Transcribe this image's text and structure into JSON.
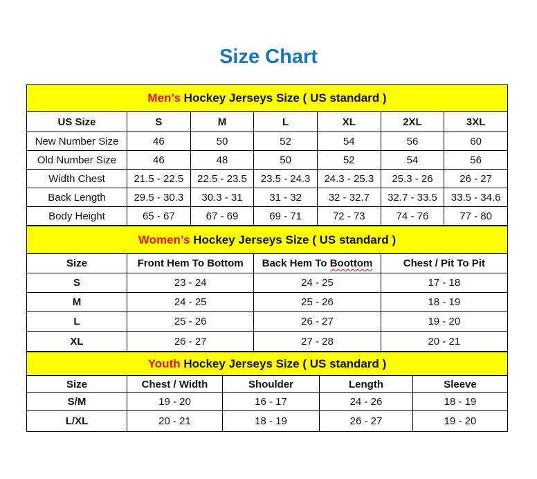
{
  "title": "Size Chart",
  "mens": {
    "heading_prefix": "Men’s",
    "heading_rest": " Hockey Jerseys Size ( US standard )",
    "columns": [
      "US Size",
      "S",
      "M",
      "L",
      "XL",
      "2XL",
      "3XL"
    ],
    "rows": [
      [
        "New Number Size",
        "46",
        "50",
        "52",
        "54",
        "56",
        "60"
      ],
      [
        "Old Number Size",
        "46",
        "48",
        "50",
        "52",
        "54",
        "56"
      ],
      [
        "Width Chest",
        "21.5 - 22.5",
        "22.5 - 23.5",
        "23.5 - 24.3",
        "24.3 - 25.3",
        "25.3 - 26",
        "26 - 27"
      ],
      [
        "Back Length",
        "29.5 - 30.3",
        "30.3 - 31",
        "31 - 32",
        "32 - 32.7",
        "32.7 - 33.5",
        "33.5 - 34.6"
      ],
      [
        "Body Height",
        "65 - 67",
        "67 - 69",
        "69 - 71",
        "72 - 73",
        "74 - 76",
        "77 - 80"
      ]
    ]
  },
  "womens": {
    "heading_prefix": "Women’s",
    "heading_rest": " Hockey Jerseys Size ( US standard )",
    "columns": [
      "Size",
      "Front Hem To Bottom",
      "Back Hem To ",
      "Chest / Pit To Pit"
    ],
    "misspelled_word": "Boottom",
    "rows": [
      [
        "S",
        "23 - 24",
        "24 - 25",
        "17 - 18"
      ],
      [
        "M",
        "24 - 25",
        "25 - 26",
        "18 - 19"
      ],
      [
        "L",
        "25 - 26",
        "26 - 27",
        "19 - 20"
      ],
      [
        "XL",
        "26 - 27",
        "27 - 28",
        "20 - 21"
      ]
    ]
  },
  "youth": {
    "heading_prefix": "Youth",
    "heading_rest": " Hockey Jerseys Size ( US standard )",
    "columns": [
      "Size",
      "Chest / Width",
      "Shoulder",
      "Length",
      "Sleeve"
    ],
    "rows": [
      [
        "S/M",
        "19 - 20",
        "16 - 17",
        "24 - 26",
        "18 - 19"
      ],
      [
        "L/XL",
        "20 - 21",
        "18 - 19",
        "26 - 27",
        "19 - 20"
      ]
    ]
  },
  "colors": {
    "title": "#1b75bc",
    "section_bg": "#ffff00",
    "accent_red": "#e8110f"
  }
}
